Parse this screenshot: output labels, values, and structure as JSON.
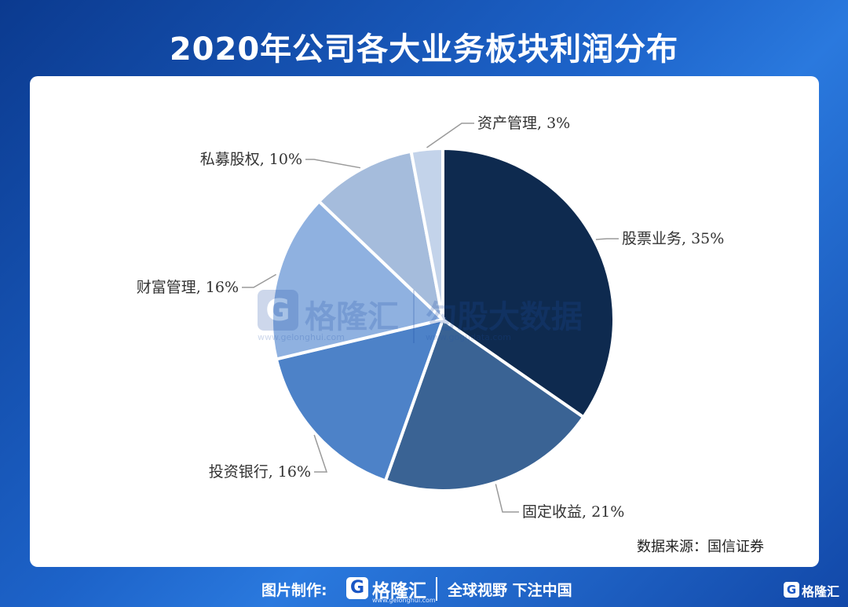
{
  "title": "2020年公司各大业务板块利润分布",
  "source": "数据来源：国信证券",
  "watermark": {
    "logo_letter": "G",
    "brand": "格隆汇",
    "brand_url": "www.gelonghui.com",
    "brand2": "勾股大数据",
    "brand2_url": "www.gogudata.com"
  },
  "footer": {
    "credit_label": "图片制作:",
    "logo_letter": "G",
    "brand_name": "格隆汇",
    "brand_url": "www.gelonghui.com",
    "slogan": "全球视野 下注中国",
    "corner_logo_letter": "G",
    "corner_brand": "格隆汇"
  },
  "chart_data": {
    "type": "pie",
    "title": "2020年公司各大业务板块利润分布",
    "start_angle_deg": 0,
    "direction": "clockwise",
    "slices": [
      {
        "label": "股票业务, 35%",
        "value": 35,
        "color": "#0e2a4f"
      },
      {
        "label": "固定收益, 21%",
        "value": 21,
        "color": "#3a6394"
      },
      {
        "label": "投资银行, 16%",
        "value": 16,
        "color": "#4d82c8"
      },
      {
        "label": "财富管理, 16%",
        "value": 16,
        "color": "#8fb1e0"
      },
      {
        "label": "私募股权, 10%",
        "value": 10,
        "color": "#a5bcdc"
      },
      {
        "label": "资产管理, 3%",
        "value": 3,
        "color": "#c3d3ea"
      }
    ]
  }
}
